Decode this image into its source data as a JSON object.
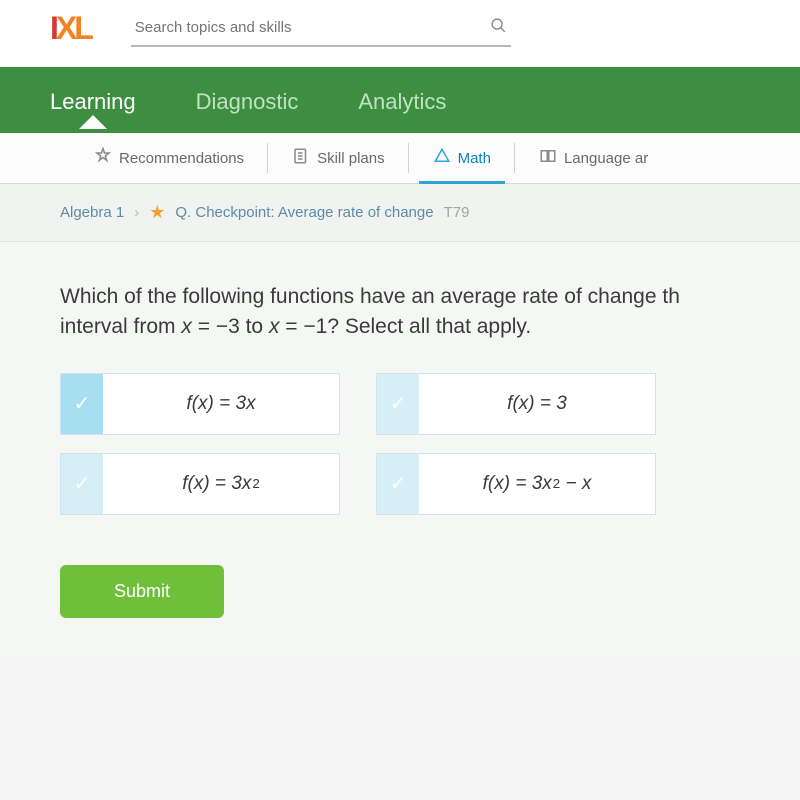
{
  "header": {
    "logo_parts": {
      "i": "I",
      "x": "X",
      "l": "L"
    },
    "search_placeholder": "Search topics and skills"
  },
  "green_nav": {
    "tabs": [
      {
        "label": "Learning",
        "active": true
      },
      {
        "label": "Diagnostic",
        "active": false
      },
      {
        "label": "Analytics",
        "active": false
      }
    ]
  },
  "sub_nav": {
    "items": [
      {
        "label": "Recommendations",
        "active": false
      },
      {
        "label": "Skill plans",
        "active": false
      },
      {
        "label": "Math",
        "active": true
      },
      {
        "label": "Language ar",
        "active": false
      }
    ]
  },
  "breadcrumb": {
    "category": "Algebra 1",
    "title": "Q. Checkpoint: Average rate of change",
    "code": "T79"
  },
  "question": {
    "text_part1": "Which of the following functions have an average rate of change th",
    "text_part2": "interval from ",
    "var_x1": "x",
    "eq1": " = −3 to ",
    "var_x2": "x",
    "eq2": " = −1? Select all that apply.",
    "options": [
      {
        "formula_html": "f(x) = 3x",
        "faded": false
      },
      {
        "formula_html": "f(x) = 3",
        "faded": true
      },
      {
        "formula_html": "f(x) = 3x²",
        "faded": true
      },
      {
        "formula_html": "f(x) = 3x² − x",
        "faded": true
      }
    ],
    "submit_label": "Submit"
  },
  "colors": {
    "brand_green": "#3e8e41",
    "accent_blue": "#2ea3dc",
    "checkbox_blue": "#a7dff0",
    "submit_green": "#6fbf3b",
    "star_orange": "#f2a23a",
    "logo_i": "#d63a2f",
    "logo_xl": "#f58220"
  }
}
